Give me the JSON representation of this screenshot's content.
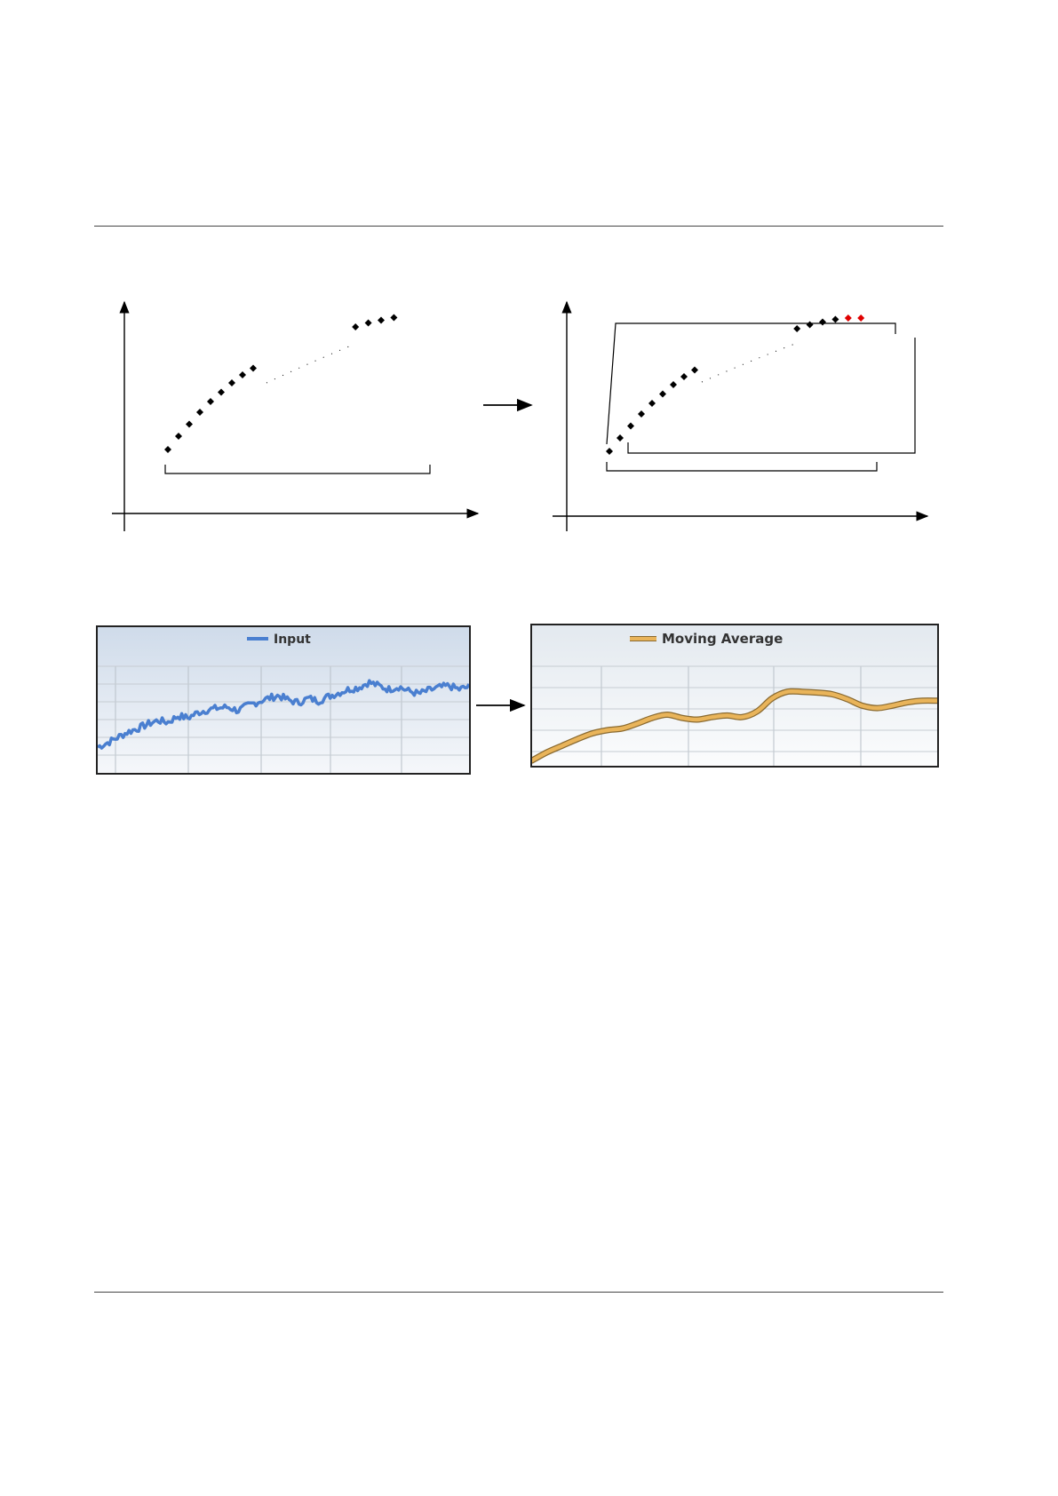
{
  "diagram": {
    "left_points": [
      [
        0.0,
        0.0
      ],
      [
        0.5,
        0.1
      ],
      [
        1.0,
        0.19
      ],
      [
        1.5,
        0.28
      ],
      [
        2.0,
        0.36
      ],
      [
        2.5,
        0.43
      ],
      [
        3.0,
        0.5
      ],
      [
        3.5,
        0.56
      ],
      [
        4.0,
        0.61
      ]
    ],
    "left_far_points": [
      [
        8.8,
        0.92
      ],
      [
        9.4,
        0.95
      ],
      [
        10.0,
        0.97
      ],
      [
        10.6,
        0.99
      ]
    ],
    "right_black_points": [
      [
        0.0,
        0.0
      ],
      [
        0.5,
        0.1
      ],
      [
        1.0,
        0.19
      ],
      [
        1.5,
        0.28
      ],
      [
        2.0,
        0.36
      ],
      [
        2.5,
        0.43
      ],
      [
        3.0,
        0.5
      ],
      [
        3.5,
        0.56
      ],
      [
        4.0,
        0.61
      ],
      [
        8.8,
        0.92
      ],
      [
        9.4,
        0.95
      ],
      [
        10.0,
        0.97
      ],
      [
        10.6,
        0.99
      ]
    ],
    "right_red_points": [
      [
        11.2,
        1.0
      ],
      [
        11.8,
        1.0
      ]
    ],
    "point_color": "#000000",
    "new_point_color": "#e00000"
  },
  "input_chart": {
    "legend": "Input",
    "line_color": "#4a7fd0",
    "background_top": "#cfdbea",
    "background_bottom": "#f5f7fa"
  },
  "moving_average_chart": {
    "legend": "Moving Average",
    "line_color": "#e9b45a",
    "line_edge_color": "#8a6a30",
    "background_top": "#e3e9ef",
    "background_bottom": "#fbfcfd"
  },
  "chart_data": [
    {
      "type": "line",
      "title": "",
      "legend": "top-center",
      "grid": true,
      "series": [
        {
          "name": "Input",
          "values": [
            0.05,
            0.1,
            0.16,
            0.22,
            0.26,
            0.31,
            0.35,
            0.33,
            0.4,
            0.38,
            0.44,
            0.47,
            0.49,
            0.5,
            0.46,
            0.52,
            0.56,
            0.6,
            0.63,
            0.58,
            0.55,
            0.6,
            0.57,
            0.62,
            0.66,
            0.7,
            0.72,
            0.78,
            0.74,
            0.7,
            0.73,
            0.68,
            0.65,
            0.69,
            0.72,
            0.74,
            0.7,
            0.73
          ]
        }
      ]
    },
    {
      "type": "line",
      "title": "",
      "legend": "top-center",
      "grid": true,
      "series": [
        {
          "name": "Moving Average",
          "values": [
            0.0,
            0.1,
            0.18,
            0.26,
            0.33,
            0.37,
            0.39,
            0.45,
            0.52,
            0.56,
            0.52,
            0.5,
            0.53,
            0.55,
            0.53,
            0.6,
            0.76,
            0.84,
            0.84,
            0.83,
            0.81,
            0.75,
            0.67,
            0.64,
            0.67,
            0.71,
            0.73,
            0.73
          ]
        }
      ]
    }
  ]
}
